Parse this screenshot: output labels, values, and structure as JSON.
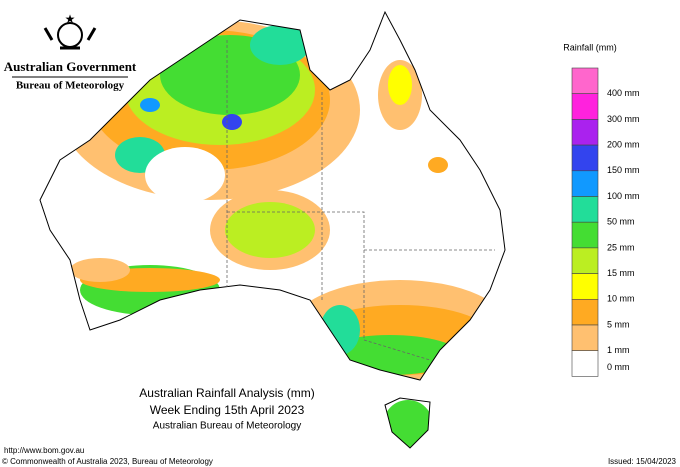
{
  "header": {
    "government": "Australian Government",
    "agency": "Bureau of Meteorology"
  },
  "legend": {
    "title": "Rainfall (mm)",
    "colors": [
      "#ff66cc",
      "#ff22dd",
      "#aa22ee",
      "#3344ee",
      "#1199ff",
      "#22dd99",
      "#44dd33",
      "#bbee22",
      "#ffff00",
      "#ffaa22",
      "#ffc070",
      "#ffffff"
    ],
    "labels": [
      "400 mm",
      "300 mm",
      "200 mm",
      "150 mm",
      "100 mm",
      "50 mm",
      "25 mm",
      "15 mm",
      "10 mm",
      "5 mm",
      "1 mm",
      "0 mm"
    ]
  },
  "caption": {
    "title": "Australian Rainfall Analysis (mm)",
    "subtitle": "Week Ending 15th April 2023",
    "source": "Australian Bureau of Meteorology"
  },
  "footer": {
    "url": "http://www.bom.gov.au",
    "copyright": "© Commonwealth of Australia 2023, Bureau of Meteorology",
    "issued": "Issued: 15/04/2023"
  }
}
